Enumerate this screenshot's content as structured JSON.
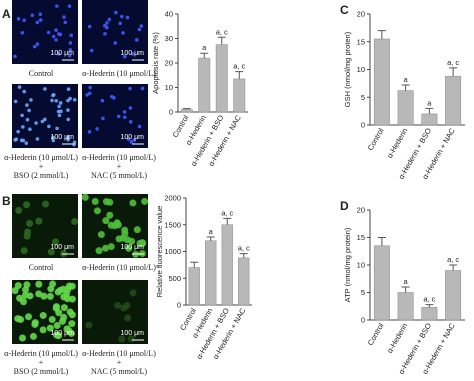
{
  "chart_data": [
    {
      "type": "bar",
      "panel": "A",
      "y_label": "Apoptosis rate (%)",
      "categories": [
        "Control",
        "α-Hederin",
        "α-Hederin + BSO",
        "α-Hederin + NAC"
      ],
      "values": [
        1,
        22,
        27.5,
        13.5
      ],
      "errors": [
        0.4,
        2,
        3,
        3
      ],
      "annotations": [
        null,
        "a",
        "a, c",
        "a, c"
      ],
      "color": "#b8b8b8",
      "ylim": [
        0,
        40
      ],
      "yticks": [
        0,
        10,
        20,
        30,
        40
      ]
    },
    {
      "type": "bar",
      "panel": "B",
      "y_label": "Relative fluorescence value",
      "categories": [
        "Control",
        "α-Hederin",
        "α-Hederin + BSO",
        "α-Hederin + NAC"
      ],
      "values": [
        700,
        1200,
        1500,
        880
      ],
      "errors": [
        100,
        70,
        120,
        80
      ],
      "annotations": [
        null,
        "a",
        "a, c",
        "a, c"
      ],
      "color": "#b8b8b8",
      "ylim": [
        0,
        2000
      ],
      "yticks": [
        0,
        500,
        1000,
        1500,
        2000
      ]
    },
    {
      "type": "bar",
      "panel": "C",
      "y_label": "GSH (nmol/mg proten)",
      "categories": [
        "Control",
        "α-Hederin",
        "α-Hederin + BSO",
        "α-Hederin + NAC"
      ],
      "values": [
        15.5,
        6.2,
        2,
        8.8
      ],
      "errors": [
        1.5,
        1,
        1,
        1.5
      ],
      "annotations": [
        null,
        "a",
        "a",
        "a, c"
      ],
      "color": "#b8b8b8",
      "ylim": [
        0,
        20
      ],
      "yticks": [
        0,
        5,
        10,
        15,
        20
      ]
    },
    {
      "type": "bar",
      "panel": "D",
      "y_label": "ATP (nmol/mg protein)",
      "categories": [
        "Control",
        "α-Hederin",
        "α-Hederin + BSO",
        "α-Hederin + NAC"
      ],
      "values": [
        13.5,
        5,
        2.3,
        9
      ],
      "errors": [
        1.5,
        1,
        0.5,
        1
      ],
      "annotations": [
        null,
        "a",
        "a, c",
        "a, c"
      ],
      "color": "#b8b8b8",
      "ylim": [
        0,
        20
      ],
      "yticks": [
        0,
        5,
        10,
        15,
        20
      ]
    }
  ],
  "micrographs": [
    {
      "scale": "100 μm",
      "captions": [
        "Control"
      ]
    },
    {
      "scale": "100 μm",
      "captions": [
        "α-Hederin (10 μmol/L)"
      ]
    },
    {
      "scale": "100 μm",
      "captions": [
        "α-Hederin (10 μmol/L)",
        "+",
        "BSO (2 mmol/L)"
      ]
    },
    {
      "scale": "100 μm",
      "captions": [
        "α-Hederin (10 μmol/L)",
        "+",
        "NAC (5 mmol/L)"
      ]
    },
    {
      "scale": "100 μm",
      "captions": [
        "Control"
      ]
    },
    {
      "scale": "100 μm",
      "captions": [
        "α-Hederin (10 μmol/L)"
      ]
    },
    {
      "scale": "100 μm",
      "captions": [
        "α-Hederin (10 μmol/L)",
        "+",
        "BSO (2 mmol/L)"
      ]
    },
    {
      "scale": "100 μm",
      "captions": [
        "α-Hederin (10 μmol/L)",
        "+",
        "NAC (5 mmol/L)"
      ]
    }
  ]
}
